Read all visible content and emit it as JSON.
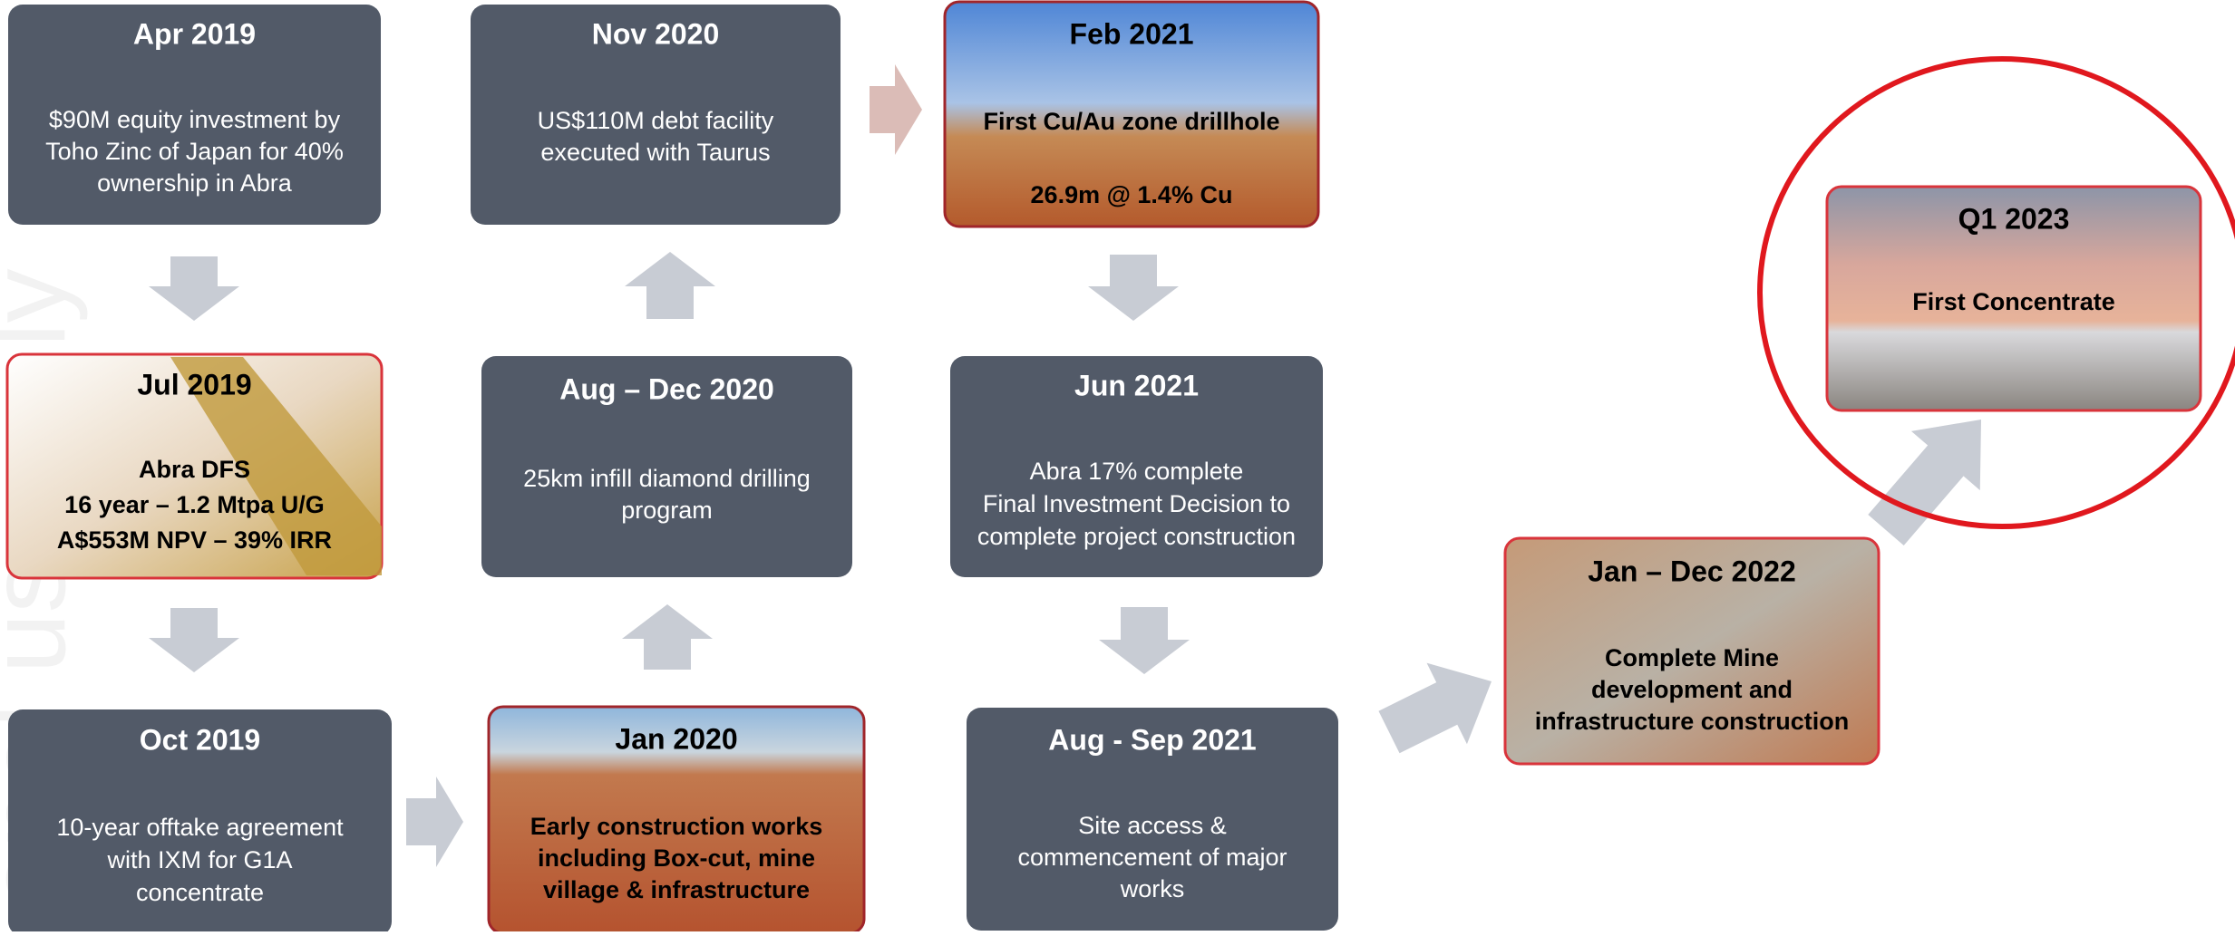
{
  "watermark": "onal use only",
  "nodes": [
    {
      "date": "Apr 2019",
      "lines": [
        "$90M equity investment by",
        "Toho Zinc of Japan for 40%",
        "ownership in Abra"
      ]
    },
    {
      "date": "Jul 2019",
      "lines": [
        "Abra DFS",
        "16 year – 1.2 Mtpa U/G",
        "A$553M NPV – 39% IRR"
      ]
    },
    {
      "date": "Oct 2019",
      "lines": [
        "10-year offtake agreement",
        "with IXM for G1A",
        "concentrate"
      ]
    },
    {
      "date": "Jan 2020",
      "lines": [
        "Early construction works",
        "including Box-cut, mine",
        "village & infrastructure"
      ]
    },
    {
      "date": "Aug – Dec 2020",
      "lines": [
        "25km infill diamond drilling",
        "program"
      ]
    },
    {
      "date": "Nov 2020",
      "lines": [
        "US$110M debt facility",
        "executed with Taurus"
      ]
    },
    {
      "date": "Feb 2021",
      "lines": [
        "First Cu/Au zone drillhole",
        "26.9m @ 1.4% Cu"
      ]
    },
    {
      "date": "Jun 2021",
      "lines": [
        "Abra 17% complete",
        "Final Investment Decision to",
        "complete project construction"
      ]
    },
    {
      "date": "Aug - Sep 2021",
      "lines": [
        "Site access &",
        "commencement of major",
        "works"
      ]
    },
    {
      "date": "Jan – Dec 2022",
      "lines": [
        "Complete Mine",
        "development and",
        "infrastructure construction"
      ]
    },
    {
      "date": "Q1 2023",
      "lines": [
        "First Concentrate"
      ]
    }
  ]
}
